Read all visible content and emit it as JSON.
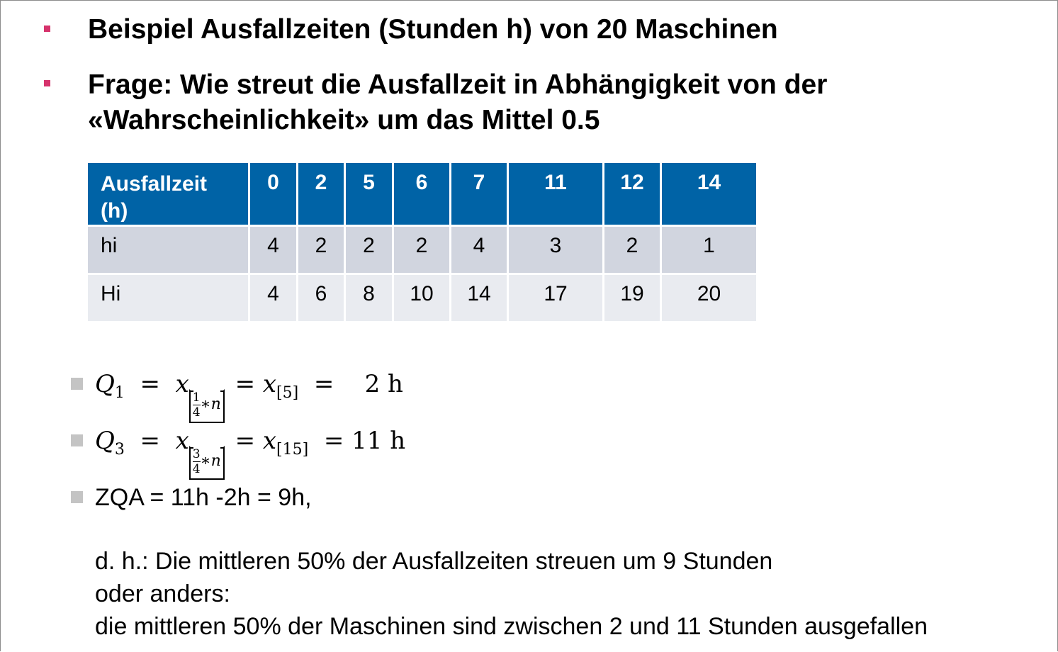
{
  "headings": {
    "line1": "Beispiel Ausfallzeiten (Stunden h) von 20 Maschinen",
    "line2a": "Frage: Wie streut die Ausfallzeit in Abhängigkeit von der",
    "line2b": "«Wahrscheinlichkeit» um das Mittel 0.5"
  },
  "table": {
    "header_label_1": "Ausfallzeit",
    "header_label_2": "(h)",
    "columns": [
      "0",
      "2",
      "5",
      "6",
      "7",
      "11",
      "12",
      "14"
    ],
    "rows": [
      {
        "label": "hi",
        "values": [
          "4",
          "2",
          "2",
          "2",
          "4",
          "3",
          "2",
          "1"
        ]
      },
      {
        "label": "Hi",
        "values": [
          "4",
          "6",
          "8",
          "10",
          "14",
          "17",
          "19",
          "20"
        ]
      }
    ],
    "colors": {
      "header_bg": "#0063a6",
      "row_odd": "#d1d5df",
      "row_even": "#e9ebf0"
    }
  },
  "formulas": {
    "q1": {
      "symbol": "Q",
      "sub": "1",
      "frac_num": "1",
      "frac_den": "4",
      "frac_rest": "∗n",
      "eq_index": "5",
      "result": "2 h"
    },
    "q3": {
      "symbol": "Q",
      "sub": "3",
      "frac_num": "3",
      "frac_den": "4",
      "frac_rest": "∗n",
      "eq_index": "15",
      "result": "11 h"
    }
  },
  "zqa": "ZQA = 11h -2h = 9h,",
  "explanation": {
    "line1": "d. h.: Die mittleren 50% der Ausfallzeiten streuen um 9 Stunden",
    "line2": "oder anders:",
    "line3": "die mittleren 50% der Maschinen sind zwischen 2 und 11 Stunden ausgefallen"
  }
}
